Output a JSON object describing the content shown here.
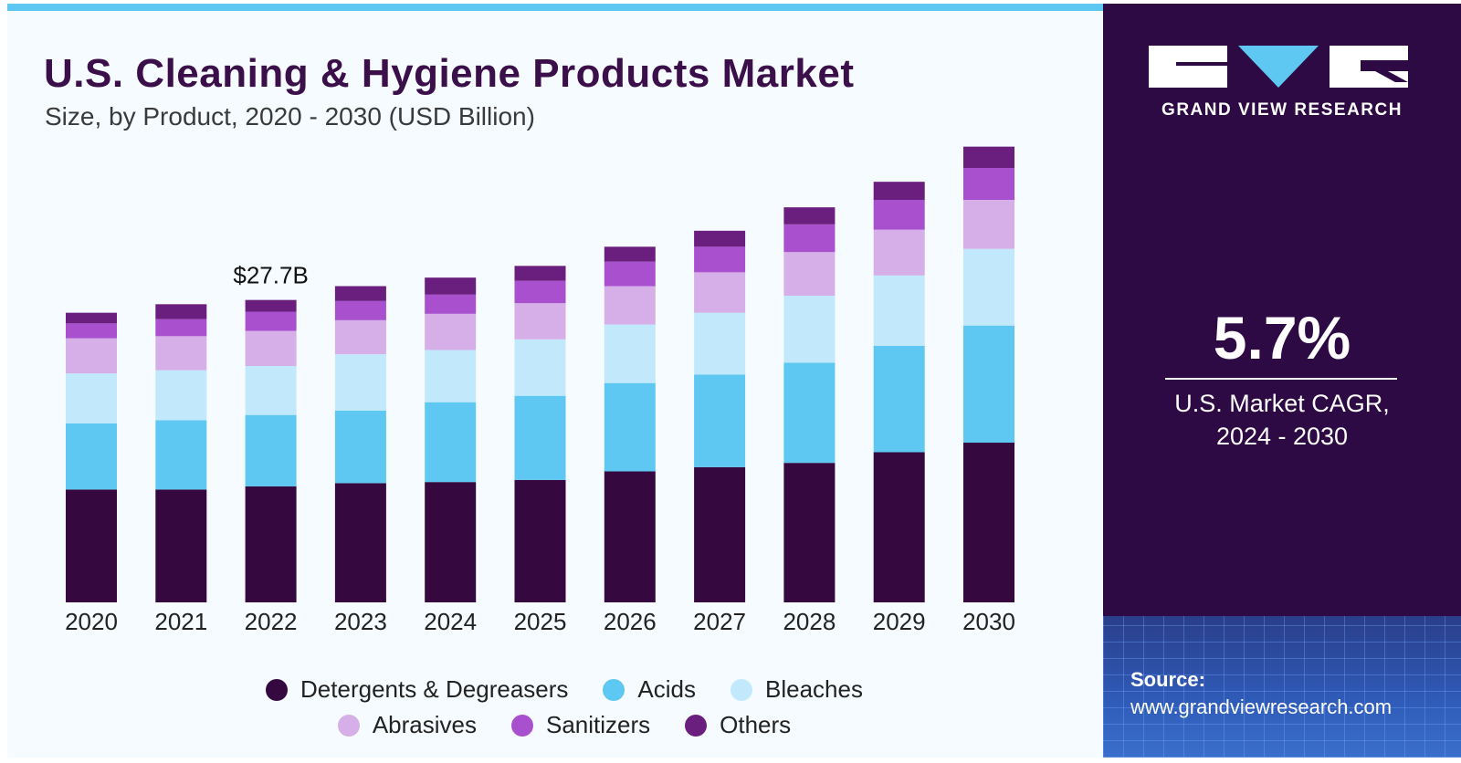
{
  "title": "U.S. Cleaning & Hygiene Products Market",
  "subtitle": "Size, by Product, 2020 - 2030 (USD Billion)",
  "brand": {
    "name": "GRAND VIEW RESEARCH"
  },
  "cagr": {
    "value": "5.7%",
    "label_line1": "U.S. Market CAGR,",
    "label_line2": "2024 - 2030"
  },
  "source": {
    "label": "Source:",
    "url": "www.grandviewresearch.com"
  },
  "colors": {
    "accent": "#5ec8f2",
    "panel": "#2e0a45",
    "title": "#3b0f4a"
  },
  "chart_data": {
    "type": "bar",
    "stacked": true,
    "title": "U.S. Cleaning & Hygiene Products Market",
    "subtitle": "Size, by Product, 2020 - 2030 (USD Billion)",
    "xlabel": "",
    "ylabel": "",
    "ylim": [
      0,
      42
    ],
    "grid": false,
    "legend_position": "bottom",
    "categories": [
      "2020",
      "2021",
      "2022",
      "2023",
      "2024",
      "2025",
      "2026",
      "2027",
      "2028",
      "2029",
      "2030"
    ],
    "annotations": [
      {
        "category": "2022",
        "text": "$27.7B"
      }
    ],
    "series": [
      {
        "name": "Detergents & Degreasers",
        "color": "#35093f",
        "values": [
          10.6,
          10.6,
          10.9,
          11.2,
          11.3,
          11.5,
          12.3,
          12.7,
          13.1,
          14.1,
          15.0
        ]
      },
      {
        "name": "Acids",
        "color": "#5ec8f2",
        "values": [
          6.2,
          6.5,
          6.7,
          6.8,
          7.5,
          7.9,
          8.3,
          8.7,
          9.4,
          10.0,
          11.0
        ]
      },
      {
        "name": "Bleaches",
        "color": "#c2e9fb",
        "values": [
          4.7,
          4.7,
          4.6,
          5.3,
          4.9,
          5.3,
          5.5,
          5.8,
          6.3,
          6.6,
          7.2
        ]
      },
      {
        "name": "Abrasives",
        "color": "#d6aee8",
        "values": [
          3.3,
          3.2,
          3.3,
          3.2,
          3.4,
          3.4,
          3.6,
          3.8,
          4.1,
          4.3,
          4.6
        ]
      },
      {
        "name": "Sanitizers",
        "color": "#a950cf",
        "values": [
          1.4,
          1.6,
          1.8,
          1.8,
          1.8,
          2.1,
          2.3,
          2.4,
          2.6,
          2.8,
          3.0
        ]
      },
      {
        "name": "Others",
        "color": "#6a1f7f",
        "values": [
          1.0,
          1.4,
          1.1,
          1.4,
          1.6,
          1.4,
          1.4,
          1.5,
          1.6,
          1.7,
          2.0
        ]
      }
    ]
  }
}
